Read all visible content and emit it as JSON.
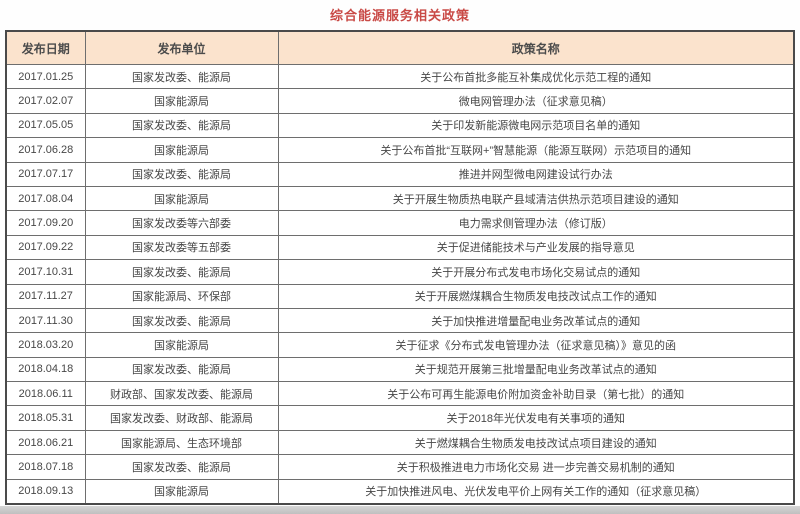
{
  "page": {
    "title": "综合能源服务相关政策"
  },
  "chart_data": {
    "type": "table",
    "title": "综合能源服务相关政策",
    "columns": [
      "发布日期",
      "发布单位",
      "政策名称"
    ],
    "rows": [
      [
        "2017.01.25",
        "国家发改委、能源局",
        "关于公布首批多能互补集成优化示范工程的通知"
      ],
      [
        "2017.02.07",
        "国家能源局",
        "微电网管理办法（征求意见稿）"
      ],
      [
        "2017.05.05",
        "国家发改委、能源局",
        "关于印发新能源微电网示范项目名单的通知"
      ],
      [
        "2017.06.28",
        "国家能源局",
        "关于公布首批“互联网+”智慧能源（能源互联网）示范项目的通知"
      ],
      [
        "2017.07.17",
        "国家发改委、能源局",
        "推进并网型微电网建设试行办法"
      ],
      [
        "2017.08.04",
        "国家能源局",
        "关于开展生物质热电联产县域清洁供热示范项目建设的通知"
      ],
      [
        "2017.09.20",
        "国家发改委等六部委",
        "电力需求侧管理办法（修订版）"
      ],
      [
        "2017.09.22",
        "国家发改委等五部委",
        "关于促进储能技术与产业发展的指导意见"
      ],
      [
        "2017.10.31",
        "国家发改委、能源局",
        "关于开展分布式发电市场化交易试点的通知"
      ],
      [
        "2017.11.27",
        "国家能源局、环保部",
        "关于开展燃煤耦合生物质发电技改试点工作的通知"
      ],
      [
        "2017.11.30",
        "国家发改委、能源局",
        "关于加快推进增量配电业务改革试点的通知"
      ],
      [
        "2018.03.20",
        "国家能源局",
        "关于征求《分布式发电管理办法（征求意见稿）》意见的函"
      ],
      [
        "2018.04.18",
        "国家发改委、能源局",
        "关于规范开展第三批增量配电业务改革试点的通知"
      ],
      [
        "2018.06.11",
        "财政部、国家发改委、能源局",
        "关于公布可再生能源电价附加资金补助目录（第七批）的通知"
      ],
      [
        "2018.05.31",
        "国家发改委、财政部、能源局",
        "关于2018年光伏发电有关事项的通知"
      ],
      [
        "2018.06.21",
        "国家能源局、生态环境部",
        "关于燃煤耦合生物质发电技改试点项目建设的通知"
      ],
      [
        "2018.07.18",
        "国家发改委、能源局",
        "关于积极推进电力市场化交易 进一步完善交易机制的通知"
      ],
      [
        "2018.09.13",
        "国家能源局",
        "关于加快推进风电、光伏发电平价上网有关工作的通知（征求意见稿）"
      ]
    ],
    "layout": {
      "header_row": true,
      "all_cells_centered": true,
      "grid": true
    }
  },
  "colors": {
    "title_text": "#c94a46",
    "header_bg": "#fbe3cd",
    "border": "#6e6e6e",
    "outer_border": "#4a4a4a",
    "body_text": "#474747",
    "bottom_bar": "#c6c6c6"
  }
}
